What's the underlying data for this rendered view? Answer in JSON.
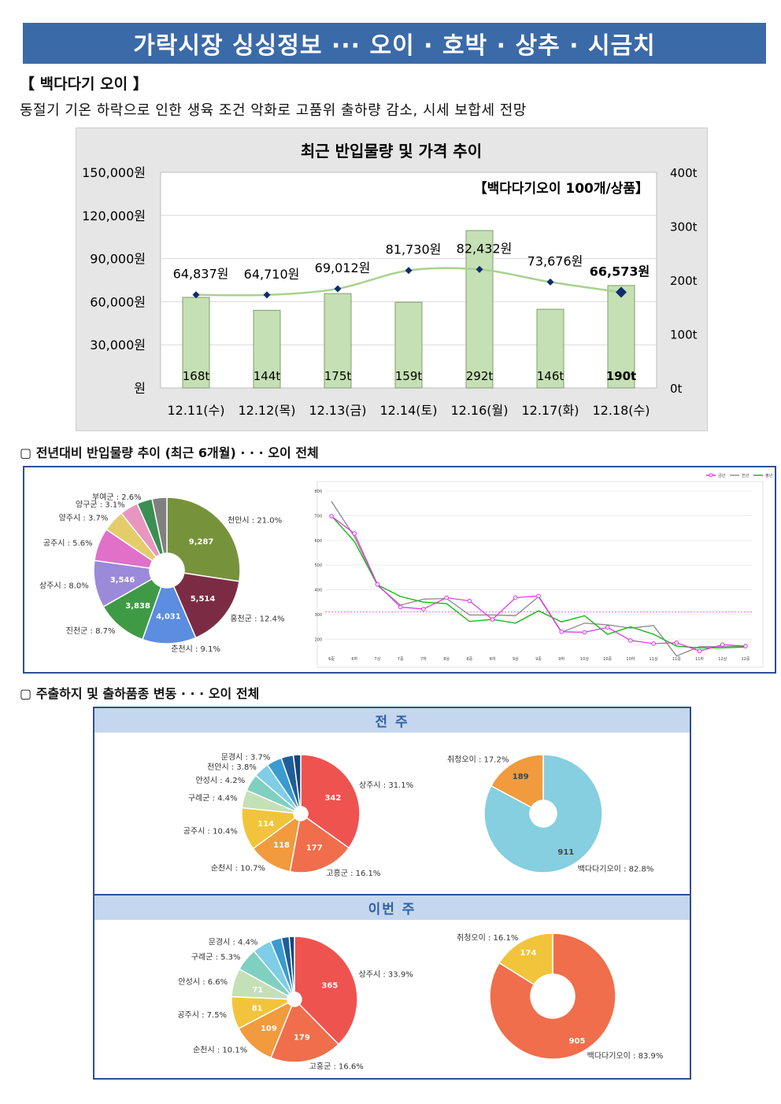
{
  "header": {
    "title": "가락시장 싱싱정보 ··· 오이 · 호박 · 상추 · 시금치",
    "item_title": "【 백다다기 오이 】",
    "item_desc": "동절기 기온 하락으로 인한 생육 조건 악화로 고품위 출하량 감소, 시세 보합세 전망"
  },
  "chart_data": [
    {
      "type": "bar",
      "title": "최근 반입물량 및 가격 추이",
      "subtitle": "【백다다기오이 100개/상품】",
      "categories": [
        "12.11(수)",
        "12.12(목)",
        "12.13(금)",
        "12.14(토)",
        "12.16(월)",
        "12.17(화)",
        "12.18(수)"
      ],
      "series": [
        {
          "type": "bar",
          "axis": "right",
          "values": [
            168,
            144,
            175,
            159,
            292,
            146,
            190
          ],
          "labels": [
            "168t",
            "144t",
            "175t",
            "159t",
            "292t",
            "146t",
            "190t"
          ],
          "color": "#c5e0b4"
        },
        {
          "type": "line",
          "axis": "left",
          "values": [
            64837,
            64710,
            69012,
            81730,
            82432,
            73676,
            66573
          ],
          "labels": [
            "64,837원",
            "64,710원",
            "69,012원",
            "81,730원",
            "82,432원",
            "73,676원",
            "66,573원"
          ],
          "color": "#a9d18e",
          "marker_color": "#0d2d6b"
        }
      ],
      "left_ticks": [
        "150,000원",
        "120,000원",
        "90,000원",
        "60,000원",
        "30,000원",
        "원"
      ],
      "left_range": [
        0,
        150000
      ],
      "right_ticks": [
        "400t",
        "300t",
        "200t",
        "100t",
        "0t"
      ],
      "right_range": [
        0,
        400
      ],
      "grid": true
    },
    {
      "type": "pie",
      "slices": [
        {
          "label": "천안시 : 21.0%",
          "value": 21.0,
          "inner": "9,287",
          "color": "#76933c"
        },
        {
          "label": "홍천군 : 12.4%",
          "value": 12.4,
          "inner": "5,514",
          "color": "#7b2c44"
        },
        {
          "label": "춘천시 : 9.1%",
          "value": 9.1,
          "inner": "4,031",
          "color": "#5b8de0"
        },
        {
          "label": "진천군 : 8.7%",
          "value": 8.7,
          "inner": "3,838",
          "color": "#3f9a45"
        },
        {
          "label": "상주시 : 8.0%",
          "value": 8.0,
          "inner": "3,546",
          "color": "#9b8ad9"
        },
        {
          "label": "공주시 : 5.6%",
          "value": 5.6,
          "inner": "",
          "color": "#e070c8"
        },
        {
          "label": "양주시 : 3.7%",
          "value": 3.7,
          "inner": "",
          "color": "#e5cc6a"
        },
        {
          "label": "양구군 : 3.1%",
          "value": 3.1,
          "inner": "",
          "color": "#e896c0"
        },
        {
          "label": "부여군 : 2.6%",
          "value": 2.6,
          "inner": "",
          "color": "#3b8f52"
        },
        {
          "label": "",
          "value": 2.5,
          "inner": "",
          "color": "#808080"
        }
      ]
    },
    {
      "type": "line",
      "legend": [
        "금년",
        "전년",
        "평년"
      ],
      "legend_position": "top-right",
      "y_ticks": [
        "800",
        "700",
        "600",
        "500",
        "400",
        "300",
        "200"
      ],
      "ylim": [
        150,
        800
      ],
      "x": [
        "6중",
        "6하",
        "7상",
        "7중",
        "7하",
        "8상",
        "8중",
        "8하",
        "9상",
        "9중",
        "9하",
        "10상",
        "10중",
        "10하",
        "11상",
        "11중",
        "11하",
        "12상",
        "12중"
      ],
      "series": [
        {
          "name": "금년",
          "color": "#e62ee6",
          "values": [
            698,
            628,
            422,
            330,
            322,
            368,
            355,
            280,
            368,
            375,
            230,
            228,
            248,
            195,
            182,
            186,
            152,
            178,
            172
          ]
        },
        {
          "name": "전년",
          "color": "#909090",
          "values": [
            758,
            615,
            418,
            338,
            362,
            365,
            298,
            298,
            295,
            372,
            228,
            265,
            258,
            245,
            255,
            132,
            170,
            170,
            172
          ]
        },
        {
          "name": "평년",
          "color": "#18b818",
          "values": [
            700,
            595,
            420,
            373,
            350,
            344,
            272,
            280,
            265,
            315,
            270,
            295,
            220,
            250,
            220,
            172,
            165,
            165,
            168
          ]
        }
      ],
      "reference_value": 310
    },
    {
      "type": "pie",
      "period": "전 주",
      "slices": [
        {
          "label": "상주시 : 31.1%",
          "value": 31.1,
          "inner": "342",
          "color": "#ef5350"
        },
        {
          "label": "고흥군 : 16.1%",
          "value": 16.1,
          "inner": "177",
          "color": "#f06e4b"
        },
        {
          "label": "순천시 : 10.7%",
          "value": 10.7,
          "inner": "118",
          "color": "#f19a3e"
        },
        {
          "label": "공주시 : 10.4%",
          "value": 10.4,
          "inner": "114",
          "color": "#f2c43b"
        },
        {
          "label": "구례군 : 4.4%",
          "value": 4.4,
          "inner": "",
          "color": "#c4e0b7"
        },
        {
          "label": "안성시 : 4.2%",
          "value": 4.2,
          "inner": "",
          "color": "#7fd0c0"
        },
        {
          "label": "천안시 : 3.8%",
          "value": 3.8,
          "inner": "",
          "color": "#7fcde6"
        },
        {
          "label": "문경시 : 3.7%",
          "value": 3.7,
          "inner": "",
          "color": "#3a9bd0"
        },
        {
          "label": "",
          "value": 3.0,
          "inner": "",
          "color": "#1f5f99"
        },
        {
          "label": "",
          "value": 1.8,
          "inner": "",
          "color": "#16477a"
        }
      ]
    },
    {
      "type": "pie",
      "period": "전 주",
      "slices": [
        {
          "label": "백다다기오이 : 82.8%",
          "value": 82.8,
          "inner": "911",
          "color": "#85cfe0"
        },
        {
          "label": "취청오이 : 17.2%",
          "value": 17.2,
          "inner": "189",
          "color": "#f19a3e"
        }
      ]
    },
    {
      "type": "pie",
      "period": "이번 주",
      "slices": [
        {
          "label": "상주시 : 33.9%",
          "value": 33.9,
          "inner": "365",
          "color": "#ef5350"
        },
        {
          "label": "고흥군 : 16.6%",
          "value": 16.6,
          "inner": "179",
          "color": "#f06e4b"
        },
        {
          "label": "순천시 : 10.1%",
          "value": 10.1,
          "inner": "109",
          "color": "#f19a3e"
        },
        {
          "label": "공주시 : 7.5%",
          "value": 7.5,
          "inner": "81",
          "color": "#f2c43b"
        },
        {
          "label": "안성시 : 6.6%",
          "value": 6.6,
          "inner": "71",
          "color": "#c4e0b7"
        },
        {
          "label": "구례군 : 5.3%",
          "value": 5.3,
          "inner": "",
          "color": "#7fd0c0"
        },
        {
          "label": "문경시 : 4.4%",
          "value": 4.4,
          "inner": "",
          "color": "#7fcde6"
        },
        {
          "label": "",
          "value": 2.6,
          "inner": "",
          "color": "#3a9bd0"
        },
        {
          "label": "",
          "value": 1.8,
          "inner": "",
          "color": "#1f5f99"
        },
        {
          "label": "",
          "value": 1.2,
          "inner": "",
          "color": "#16477a"
        }
      ]
    },
    {
      "type": "pie",
      "period": "이번 주",
      "slices": [
        {
          "label": "백다다기오이 : 83.9%",
          "value": 83.9,
          "inner": "905",
          "color": "#f06e4b"
        },
        {
          "label": "취청오이 : 16.1%",
          "value": 16.1,
          "inner": "174",
          "color": "#f2c43b"
        }
      ]
    }
  ],
  "sections": {
    "trend": "▢ 전년대비 반입물량 추이 (최근 6개월) · · · 오이 전체",
    "origin": "▢ 주출하지 및 출하품종 변동 · · · 오이 전체",
    "prev_week": "전 주",
    "this_week": "이번 주"
  }
}
